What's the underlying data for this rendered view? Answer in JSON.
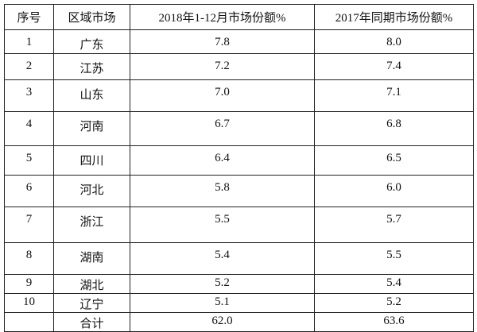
{
  "table": {
    "header": [
      "序号",
      "区域市场",
      "2018年1-12月市场份额%",
      "2017年同期市场份额%"
    ],
    "rows": [
      [
        "1",
        "广东",
        "7.8",
        "8.0"
      ],
      [
        "2",
        "江苏",
        "7.2",
        "7.4"
      ],
      [
        "3",
        "山东",
        "7.0",
        "7.1"
      ],
      [
        "4",
        "河南",
        "6.7",
        "6.8"
      ],
      [
        "5",
        "四川",
        "6.4",
        "6.5"
      ],
      [
        "6",
        "河北",
        "5.8",
        "6.0"
      ],
      [
        "7",
        "浙江",
        "5.5",
        "5.7"
      ],
      [
        "8",
        "湖南",
        "5.4",
        "5.5"
      ],
      [
        "9",
        "湖北",
        "5.2",
        "5.4"
      ],
      [
        "10",
        "辽宁",
        "5.1",
        "5.2"
      ]
    ],
    "total": {
      "label": "合计",
      "values": [
        "62.0",
        "63.6"
      ]
    }
  }
}
